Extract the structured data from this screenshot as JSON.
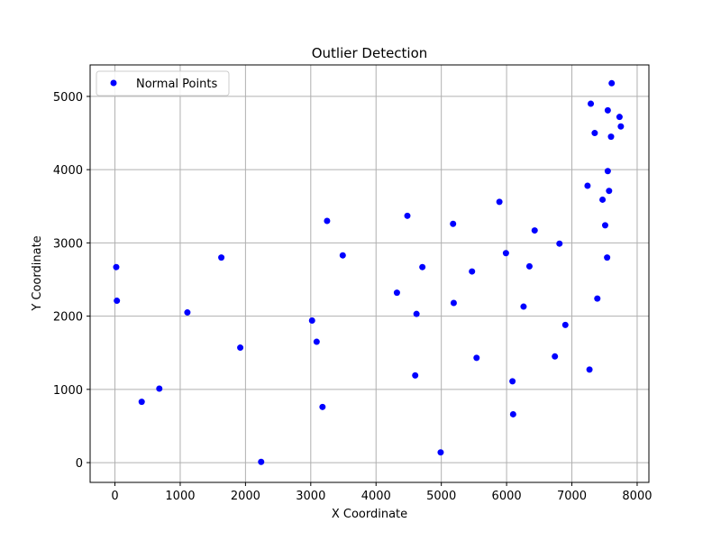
{
  "chart_data": {
    "type": "scatter",
    "title": "Outlier Detection",
    "xlabel": "X Coordinate",
    "ylabel": "Y Coordinate",
    "xlim": [
      -380,
      8180
    ],
    "ylim": [
      -270,
      5430
    ],
    "xticks": [
      0,
      1000,
      2000,
      3000,
      4000,
      5000,
      6000,
      7000,
      8000
    ],
    "yticks": [
      0,
      1000,
      2000,
      3000,
      4000,
      5000
    ],
    "grid": true,
    "legend_position": "upper-left",
    "series": [
      {
        "name": "Normal Points",
        "color": "#0000ff",
        "marker": "circle",
        "points": [
          [
            20,
            2670
          ],
          [
            30,
            2210
          ],
          [
            410,
            830
          ],
          [
            680,
            1010
          ],
          [
            1110,
            2050
          ],
          [
            1630,
            2800
          ],
          [
            1920,
            1570
          ],
          [
            2240,
            10
          ],
          [
            3020,
            1940
          ],
          [
            3090,
            1650
          ],
          [
            3180,
            760
          ],
          [
            3250,
            3300
          ],
          [
            3490,
            2830
          ],
          [
            4320,
            2320
          ],
          [
            4480,
            3370
          ],
          [
            4600,
            1190
          ],
          [
            4620,
            2030
          ],
          [
            4710,
            2670
          ],
          [
            4990,
            140
          ],
          [
            5180,
            3260
          ],
          [
            5190,
            2180
          ],
          [
            5470,
            2610
          ],
          [
            5540,
            1430
          ],
          [
            5890,
            3560
          ],
          [
            5990,
            2860
          ],
          [
            6090,
            1110
          ],
          [
            6100,
            660
          ],
          [
            6260,
            2130
          ],
          [
            6350,
            2680
          ],
          [
            6430,
            3170
          ],
          [
            6740,
            1450
          ],
          [
            6810,
            2990
          ],
          [
            6900,
            1880
          ],
          [
            7240,
            3780
          ],
          [
            7270,
            1270
          ],
          [
            7290,
            4900
          ],
          [
            7350,
            4500
          ],
          [
            7390,
            2240
          ],
          [
            7470,
            3590
          ],
          [
            7510,
            3240
          ],
          [
            7540,
            2800
          ],
          [
            7550,
            3980
          ],
          [
            7550,
            4810
          ],
          [
            7570,
            3710
          ],
          [
            7600,
            4450
          ],
          [
            7610,
            5180
          ],
          [
            7730,
            4720
          ],
          [
            7750,
            4590
          ]
        ]
      }
    ]
  }
}
